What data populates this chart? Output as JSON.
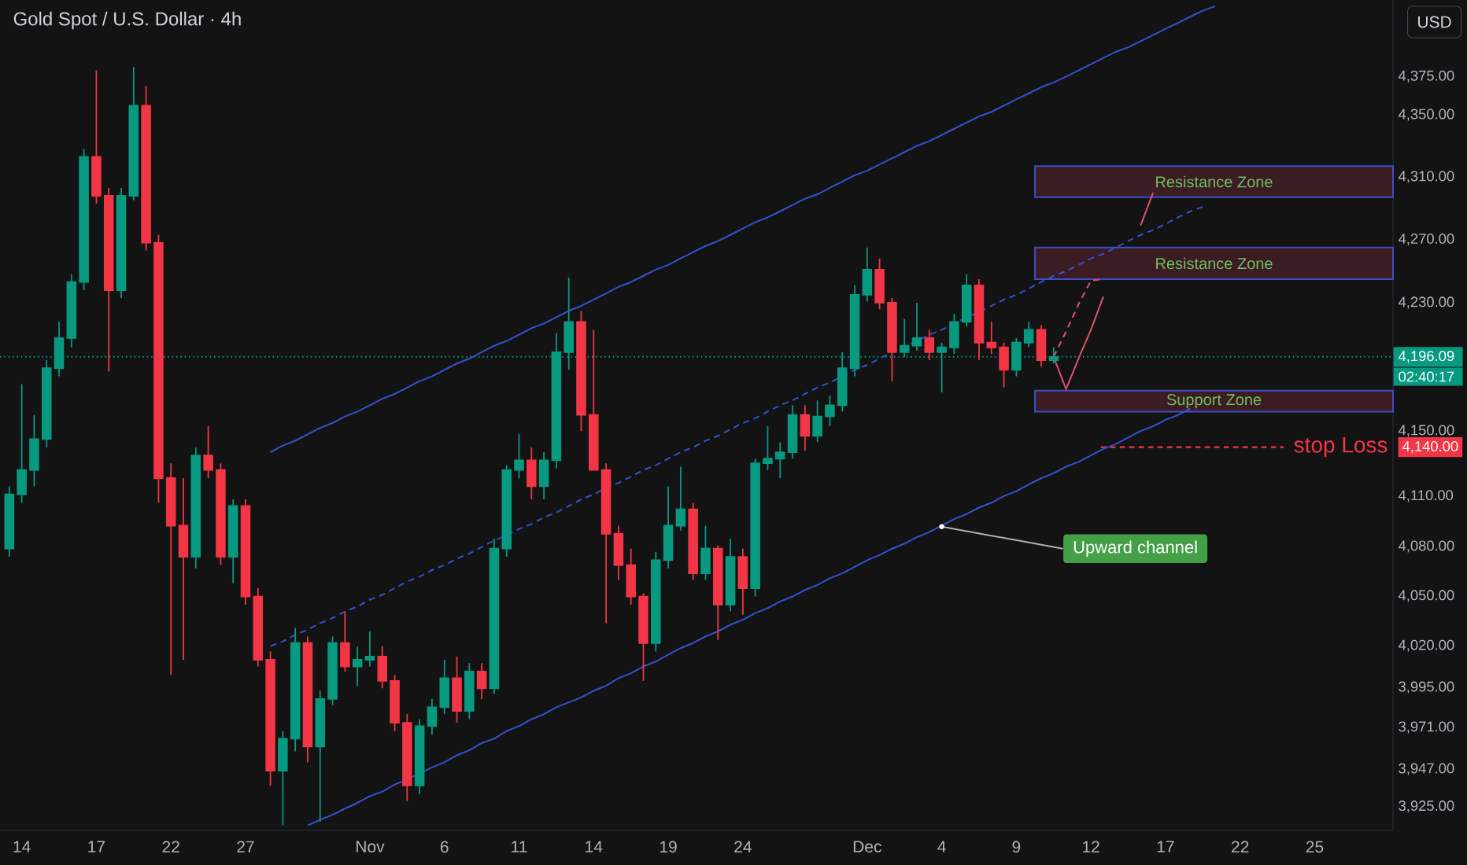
{
  "chart_data": {
    "type": "candlestick",
    "title": "Gold Spot / U.S. Dollar · 4h",
    "ylabel": "USD",
    "log": true,
    "ylim": [
      3911,
      4425
    ],
    "yticks": [
      {
        "value": 4375,
        "label": "4,375.00"
      },
      {
        "value": 4350,
        "label": "4,350.00"
      },
      {
        "value": 4310,
        "label": "4,310.00"
      },
      {
        "value": 4270,
        "label": "4,270.00"
      },
      {
        "value": 4230,
        "label": "4,230.00"
      },
      {
        "value": 4150,
        "label": "4,150.00"
      },
      {
        "value": 4140,
        "label": "4,140.00"
      },
      {
        "value": 4110,
        "label": "4,110.00"
      },
      {
        "value": 4080,
        "label": "4,080.00"
      },
      {
        "value": 4050,
        "label": "4,050.00"
      },
      {
        "value": 4020,
        "label": "4,020.00"
      },
      {
        "value": 3995,
        "label": "3,995.00"
      },
      {
        "value": 3971,
        "label": "3,971.00"
      },
      {
        "value": 3947,
        "label": "3,947.00"
      },
      {
        "value": 3925,
        "label": "3,925.00"
      }
    ],
    "categories": [
      null,
      "14",
      null,
      null,
      null,
      null,
      null,
      "17",
      null,
      null,
      null,
      null,
      null,
      "22",
      null,
      null,
      null,
      null,
      null,
      "27",
      null,
      null,
      null,
      null,
      null,
      null,
      null,
      null,
      null,
      "Nov",
      null,
      null,
      null,
      null,
      null,
      "6",
      null,
      null,
      null,
      null,
      null,
      "11",
      null,
      null,
      null,
      null,
      null,
      "14",
      null,
      null,
      null,
      null,
      null,
      "19",
      null,
      null,
      null,
      null,
      null,
      "24",
      null,
      null,
      null,
      null,
      null,
      null,
      null,
      null,
      null,
      "Dec",
      null,
      null,
      null,
      null,
      null,
      "4",
      null,
      null,
      null,
      null,
      null,
      "9",
      null,
      null,
      null,
      null,
      null,
      "12",
      null,
      null,
      null,
      null,
      null,
      "17",
      null,
      null,
      null,
      null,
      null,
      "22",
      null,
      null,
      null,
      null,
      null,
      "25",
      null,
      null,
      null,
      null,
      null,
      null
    ],
    "ohlc": [
      [
        4078,
        4116,
        4073,
        4111
      ],
      [
        4111,
        4179,
        4106,
        4126
      ],
      [
        4126,
        4160,
        4116,
        4145
      ],
      [
        4145,
        4194,
        4140,
        4189
      ],
      [
        4189,
        4218,
        4184,
        4208
      ],
      [
        4208,
        4248,
        4202,
        4243
      ],
      [
        4243,
        4328,
        4238,
        4323
      ],
      [
        4323,
        4379,
        4293,
        4298
      ],
      [
        4298,
        4303,
        4187,
        4238
      ],
      [
        4238,
        4303,
        4233,
        4298
      ],
      [
        4298,
        4381,
        4295,
        4356
      ],
      [
        4356,
        4369,
        4263,
        4268
      ],
      [
        4268,
        4273,
        4106,
        4121
      ],
      [
        4121,
        4130,
        4002,
        4092
      ],
      [
        4092,
        4121,
        4011,
        4073
      ],
      [
        4073,
        4140,
        4066,
        4135
      ],
      [
        4135,
        4153,
        4121,
        4126
      ],
      [
        4126,
        4130,
        4068,
        4073
      ],
      [
        4073,
        4108,
        4057,
        4104
      ],
      [
        4104,
        4108,
        4044,
        4049
      ],
      [
        4049,
        4054,
        4007,
        4011
      ],
      [
        4011,
        4016,
        3937,
        3946
      ],
      [
        3946,
        3969,
        3914,
        3965
      ],
      [
        3965,
        4030,
        3957,
        4021
      ],
      [
        4021,
        4025,
        3951,
        3960
      ],
      [
        3960,
        3993,
        3916,
        3988
      ],
      [
        3988,
        4025,
        3985,
        4021
      ],
      [
        4021,
        4040,
        4004,
        4007
      ],
      [
        4007,
        4019,
        3996,
        4011
      ],
      [
        4011,
        4028,
        4007,
        4013
      ],
      [
        4013,
        4019,
        3995,
        3999
      ],
      [
        3999,
        4002,
        3969,
        3974
      ],
      [
        3974,
        3979,
        3928,
        3937
      ],
      [
        3937,
        3976,
        3932,
        3972
      ],
      [
        3972,
        3988,
        3967,
        3983
      ],
      [
        3983,
        4011,
        3979,
        4000
      ],
      [
        4000,
        4013,
        3974,
        3981
      ],
      [
        3981,
        4009,
        3976,
        4004
      ],
      [
        4004,
        4009,
        3988,
        3995
      ],
      [
        3995,
        4084,
        3991,
        4078
      ],
      [
        4078,
        4129,
        4073,
        4126
      ],
      [
        4126,
        4148,
        4121,
        4132
      ],
      [
        4132,
        4140,
        4108,
        4116
      ],
      [
        4116,
        4137,
        4108,
        4132
      ],
      [
        4132,
        4211,
        4127,
        4199
      ],
      [
        4199,
        4246,
        4188,
        4218
      ],
      [
        4218,
        4225,
        4150,
        4160
      ],
      [
        4160,
        4213,
        4126,
        4126
      ],
      [
        4126,
        4130,
        4033,
        4087
      ],
      [
        4087,
        4092,
        4059,
        4068
      ],
      [
        4068,
        4078,
        4044,
        4049
      ],
      [
        4049,
        4051,
        3999,
        4021
      ],
      [
        4021,
        4076,
        4016,
        4071
      ],
      [
        4071,
        4116,
        4066,
        4092
      ],
      [
        4092,
        4128,
        4089,
        4102
      ],
      [
        4102,
        4106,
        4059,
        4063
      ],
      [
        4063,
        4092,
        4059,
        4078
      ],
      [
        4078,
        4080,
        4023,
        4044
      ],
      [
        4044,
        4084,
        4040,
        4073
      ],
      [
        4073,
        4078,
        4038,
        4054
      ],
      [
        4054,
        4133,
        4049,
        4130
      ],
      [
        4130,
        4153,
        4126,
        4133
      ],
      [
        4133,
        4143,
        4121,
        4137
      ],
      [
        4137,
        4166,
        4133,
        4160
      ],
      [
        4160,
        4166,
        4138,
        4147
      ],
      [
        4147,
        4169,
        4143,
        4159
      ],
      [
        4159,
        4172,
        4153,
        4166
      ],
      [
        4166,
        4199,
        4162,
        4189
      ],
      [
        4189,
        4241,
        4184,
        4235
      ],
      [
        4235,
        4265,
        4231,
        4251
      ],
      [
        4251,
        4258,
        4226,
        4230
      ],
      [
        4230,
        4233,
        4181,
        4199
      ],
      [
        4199,
        4220,
        4196,
        4203
      ],
      [
        4203,
        4230,
        4200,
        4208
      ],
      [
        4208,
        4213,
        4194,
        4199
      ],
      [
        4199,
        4205,
        4174,
        4202
      ],
      [
        4202,
        4223,
        4198,
        4218
      ],
      [
        4218,
        4248,
        4215,
        4241
      ],
      [
        4241,
        4245,
        4194,
        4205
      ],
      [
        4205,
        4218,
        4198,
        4202
      ],
      [
        4202,
        4205,
        4177,
        4188
      ],
      [
        4188,
        4208,
        4184,
        4205
      ],
      [
        4205,
        4218,
        4202,
        4213
      ],
      [
        4213,
        4216,
        4190,
        4194
      ],
      [
        4194,
        4202,
        4192,
        4196.09
      ],
      null,
      null,
      null,
      null,
      null,
      null,
      null,
      null,
      null,
      null,
      null,
      null,
      null,
      null,
      null,
      null,
      null,
      null,
      null,
      null,
      null,
      null,
      null,
      null,
      null,
      null,
      null
    ],
    "colors": [
      "#089981",
      "#089981",
      "#089981",
      "#089981",
      "#089981",
      "#089981",
      "#089981",
      "#f23645",
      "#f23645",
      "#089981",
      "#089981",
      "#f23645",
      "#f23645",
      "#f23645",
      "#f23645",
      "#089981",
      "#f23645",
      "#f23645",
      "#089981",
      "#f23645",
      "#f23645",
      "#f23645",
      "#089981",
      "#089981",
      "#f23645",
      "#089981",
      "#089981",
      "#f23645",
      "#089981",
      "#089981",
      "#f23645",
      "#f23645",
      "#f23645",
      "#089981",
      "#089981",
      "#089981",
      "#f23645",
      "#089981",
      "#f23645",
      "#089981",
      "#089981",
      "#089981",
      "#f23645",
      "#089981",
      "#089981",
      "#089981",
      "#f23645",
      "#f23645",
      "#f23645",
      "#f23645",
      "#f23645",
      "#f23645",
      "#089981",
      "#089981",
      "#089981",
      "#f23645",
      "#089981",
      "#f23645",
      "#089981",
      "#f23645",
      "#089981",
      "#089981",
      "#089981",
      "#089981",
      "#f23645",
      "#089981",
      "#089981",
      "#089981",
      "#089981",
      "#089981",
      "#f23645",
      "#f23645",
      "#089981",
      "#089981",
      "#f23645",
      "#089981",
      "#089981",
      "#089981",
      "#f23645",
      "#f23645",
      "#f23645",
      "#089981",
      "#089981",
      "#f23645",
      "#089981",
      null,
      null,
      null,
      null,
      null,
      null,
      null,
      null,
      null,
      null,
      null,
      null,
      null,
      null,
      null,
      null,
      null,
      null,
      null,
      null,
      null,
      null,
      null,
      null,
      null,
      null,
      null
    ],
    "series": [
      {
        "type": "line",
        "color": "#3451d1",
        "values": [
          null,
          null,
          null,
          null,
          null,
          null,
          null,
          null,
          null,
          null,
          null,
          null,
          null,
          null,
          null,
          null,
          null,
          null,
          null,
          null,
          null,
          4137,
          4141,
          4144,
          4148,
          4152,
          4155,
          4159,
          4162,
          4166,
          4170,
          4173,
          4177,
          4181,
          4184,
          4188,
          4192,
          4195,
          4199,
          4203,
          4206,
          4210,
          4214,
          4217,
          4221,
          4225,
          4228,
          4232,
          4236,
          4240,
          4243,
          4247,
          4251,
          4254,
          4258,
          4262,
          4266,
          4269,
          4273,
          4277,
          4281,
          4284,
          4288,
          4292,
          4296,
          4299,
          4303,
          4307,
          4311,
          4314,
          4318,
          4322,
          4326,
          4330,
          4333,
          4337,
          4341,
          4345,
          4349,
          4352,
          4356,
          4360,
          4364,
          4368,
          4371,
          4375,
          4379,
          4383,
          4387,
          4391,
          4394,
          4398,
          4402,
          4406,
          4410,
          4414,
          4418,
          4421,
          null,
          null,
          null,
          null,
          null,
          null,
          null,
          null,
          null,
          null,
          null,
          null,
          null,
          null
        ]
      },
      {
        "type": "line",
        "color": "#3451d1",
        "line_style": "dashed",
        "values": [
          null,
          null,
          null,
          null,
          null,
          null,
          null,
          null,
          null,
          null,
          null,
          null,
          null,
          null,
          null,
          null,
          null,
          null,
          null,
          null,
          null,
          4019,
          4022,
          4026,
          4029,
          4033,
          4036,
          4040,
          4043,
          4047,
          4050,
          4054,
          4058,
          4061,
          4065,
          4068,
          4072,
          4075,
          4079,
          4083,
          4086,
          4090,
          4093,
          4097,
          4100,
          4104,
          4108,
          4111,
          4115,
          4118,
          4122,
          4126,
          4129,
          4133,
          4137,
          4140,
          4144,
          4147,
          4151,
          4155,
          4158,
          4162,
          4166,
          4169,
          4173,
          4177,
          4180,
          4184,
          4188,
          4191,
          4195,
          4199,
          4202,
          4206,
          4210,
          4213,
          4217,
          4221,
          4224,
          4228,
          4232,
          4235,
          4239,
          4243,
          4247,
          4250,
          4254,
          4258,
          4261,
          4265,
          4269,
          4273,
          4276,
          4280,
          4284,
          4288,
          4291,
          null,
          null,
          null,
          null,
          null,
          null,
          null,
          null,
          null,
          null,
          null,
          null,
          null,
          null,
          null
        ]
      },
      {
        "type": "line",
        "color": "#3451d1",
        "values": [
          null,
          null,
          null,
          null,
          null,
          null,
          null,
          null,
          null,
          null,
          null,
          null,
          null,
          null,
          null,
          null,
          null,
          null,
          null,
          null,
          null,
          null,
          null,
          null,
          3914,
          3917,
          3920,
          3924,
          3927,
          3931,
          3934,
          3938,
          3941,
          3944,
          3948,
          3951,
          3955,
          3958,
          3962,
          3965,
          3969,
          3972,
          3976,
          3979,
          3983,
          3986,
          3989,
          3993,
          3996,
          4000,
          4003,
          4007,
          4010,
          4014,
          4018,
          4021,
          4025,
          4028,
          4032,
          4035,
          4039,
          4042,
          4046,
          4049,
          4053,
          4056,
          4060,
          4063,
          4067,
          4071,
          4074,
          4078,
          4081,
          4085,
          4088,
          4092,
          4096,
          4099,
          4103,
          4106,
          4110,
          4113,
          4117,
          4121,
          4124,
          4128,
          4131,
          4135,
          4139,
          4142,
          4146,
          4150,
          4153,
          4157,
          4160,
          4164,
          null,
          null,
          null,
          null,
          null,
          null,
          null,
          null,
          null,
          null,
          null,
          null,
          null,
          null,
          null,
          null
        ]
      },
      {
        "type": "line",
        "color": "#e0506e",
        "values": [
          null,
          null,
          null,
          null,
          null,
          null,
          null,
          null,
          null,
          null,
          null,
          null,
          null,
          null,
          null,
          null,
          null,
          null,
          null,
          null,
          null,
          null,
          null,
          null,
          null,
          null,
          null,
          null,
          null,
          null,
          null,
          null,
          null,
          null,
          null,
          null,
          null,
          null,
          null,
          null,
          null,
          null,
          null,
          null,
          null,
          null,
          null,
          null,
          null,
          null,
          null,
          null,
          null,
          null,
          null,
          null,
          null,
          null,
          null,
          null,
          null,
          null,
          null,
          null,
          null,
          null,
          null,
          null,
          null,
          null,
          null,
          null,
          null,
          null,
          null,
          null,
          null,
          null,
          null,
          null,
          null,
          null,
          null,
          null,
          4196,
          4176,
          4195,
          4213,
          4234,
          null,
          null,
          4279,
          4300,
          null,
          null,
          null,
          null,
          null,
          null,
          null,
          null,
          null,
          null,
          null,
          null,
          null,
          null,
          null,
          null,
          null,
          null,
          null
        ]
      },
      {
        "type": "line",
        "color": "#e0506e",
        "line_style": "dashed",
        "values": [
          null,
          null,
          null,
          null,
          null,
          null,
          null,
          null,
          null,
          null,
          null,
          null,
          null,
          null,
          null,
          null,
          null,
          null,
          null,
          null,
          null,
          null,
          null,
          null,
          null,
          null,
          null,
          null,
          null,
          null,
          null,
          null,
          null,
          null,
          null,
          null,
          null,
          null,
          null,
          null,
          null,
          null,
          null,
          null,
          null,
          null,
          null,
          null,
          null,
          null,
          null,
          null,
          null,
          null,
          null,
          null,
          null,
          null,
          null,
          null,
          null,
          null,
          null,
          null,
          null,
          null,
          null,
          null,
          null,
          null,
          null,
          null,
          null,
          null,
          null,
          null,
          null,
          null,
          null,
          null,
          null,
          null,
          null,
          null,
          4196,
          4212,
          4229,
          4244,
          4245,
          null,
          null,
          null,
          null,
          null,
          null,
          null,
          null,
          null,
          null,
          null,
          null,
          null,
          null,
          null,
          null,
          null,
          null,
          null,
          null,
          null,
          null,
          null
        ]
      }
    ],
    "bands": [
      {
        "axis": "y",
        "from": 4297,
        "to": 4317,
        "label": "Resistance Zone",
        "color": "#3b1c23"
      },
      {
        "axis": "y",
        "from": 4245,
        "to": 4265,
        "label": "Resistance Zone",
        "color": "#3b1c23"
      },
      {
        "axis": "y",
        "from": 4162,
        "to": 4175,
        "label": "Support Zone",
        "color": "#3b1c23"
      }
    ],
    "ref_lines": [
      {
        "axis": "y",
        "value": 4196.09,
        "label": "4,196.09",
        "color": "#089981",
        "line_style": "dotted"
      },
      {
        "axis": "y",
        "value": 4140,
        "label": "stop Loss",
        "color": "#f23645",
        "line_style": "dashed"
      }
    ],
    "annotations": [
      "02:40:17",
      {
        "text": "Upward channel",
        "x": "4",
        "y": 4092
      }
    ]
  }
}
